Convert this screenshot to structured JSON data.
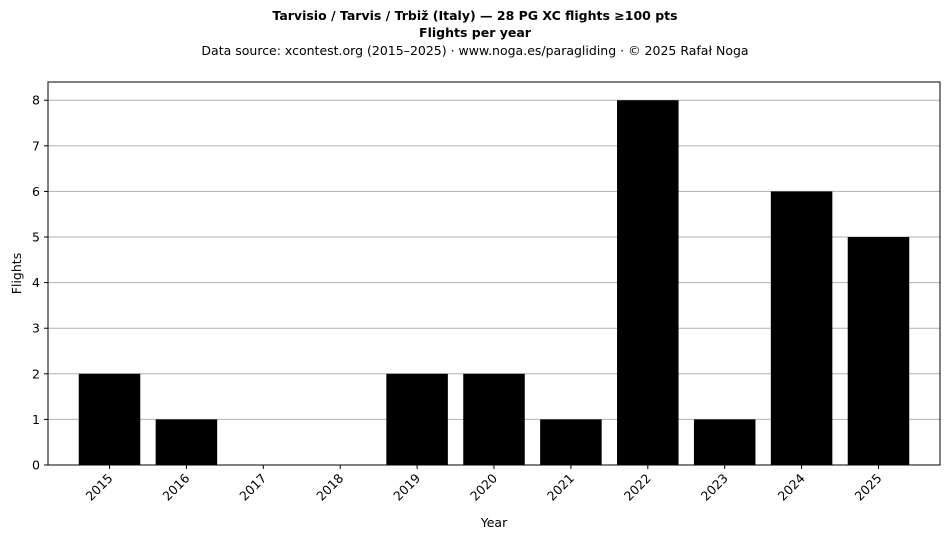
{
  "chart_data": {
    "type": "bar",
    "title": "Tarvisio / Tarvis / Trbiž (Italy)  —  28 PG XC flights ≥100 pts",
    "subtitle": "Flights per year",
    "source_note": "Data source: xcontest.org (2015–2025)  ·  www.noga.es/paragliding  ·  © 2025 Rafał Noga",
    "xlabel": "Year",
    "ylabel": "Flights",
    "categories": [
      "2015",
      "2016",
      "2017",
      "2018",
      "2019",
      "2020",
      "2021",
      "2022",
      "2023",
      "2024",
      "2025"
    ],
    "values": [
      2,
      1,
      0,
      0,
      2,
      2,
      1,
      8,
      1,
      6,
      5
    ],
    "ylim": [
      0,
      8.4
    ],
    "yticks": [
      0,
      1,
      2,
      3,
      4,
      5,
      6,
      7,
      8
    ],
    "grid": "horizontal",
    "bar_color": "#000000",
    "grid_color": "#b0b0b0",
    "xtick_rotation": "45"
  }
}
